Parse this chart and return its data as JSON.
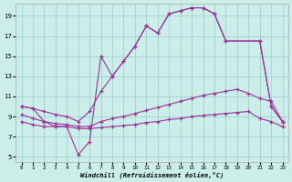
{
  "bg_color": "#cceee8",
  "line_color": "#993399",
  "grid_color": "#99cccc",
  "xlim": [
    -0.5,
    23.5
  ],
  "ylim": [
    4.5,
    20.2
  ],
  "xtick_labels": [
    "0",
    "1",
    "2",
    "3",
    "4",
    "5",
    "6",
    "7",
    "8",
    "9",
    "10",
    "11",
    "12",
    "13",
    "14",
    "15",
    "16",
    "17",
    "18",
    "19",
    "20",
    "21",
    "22",
    "23"
  ],
  "ytick_values": [
    5,
    7,
    9,
    11,
    13,
    15,
    17,
    19
  ],
  "xlabel": "Windchill (Refroidissement éolien,°C)",
  "lines": [
    {
      "x": [
        0,
        1,
        2,
        3,
        4,
        5,
        6,
        7,
        8,
        9,
        10,
        11,
        12,
        13,
        14,
        15,
        16,
        17,
        18,
        21,
        22,
        23
      ],
      "y": [
        10.0,
        9.8,
        9.5,
        9.2,
        9.0,
        8.5,
        9.5,
        11.5,
        13.0,
        14.5,
        16.0,
        18.0,
        17.3,
        19.2,
        19.5,
        19.8,
        19.8,
        19.2,
        16.5,
        16.5,
        10.0,
        8.5
      ]
    },
    {
      "x": [
        0,
        1,
        2,
        3,
        4,
        5,
        6,
        7,
        8,
        9,
        10,
        11,
        12,
        13,
        14,
        15,
        16,
        17,
        18,
        21,
        22,
        23
      ],
      "y": [
        10.0,
        9.8,
        8.5,
        8.0,
        8.0,
        5.2,
        6.5,
        15.0,
        13.0,
        14.5,
        16.0,
        18.0,
        17.3,
        19.2,
        19.5,
        19.8,
        19.8,
        19.2,
        16.5,
        16.5,
        10.0,
        8.5
      ]
    },
    {
      "x": [
        0,
        1,
        2,
        3,
        4,
        5,
        6,
        7,
        8,
        9,
        10,
        11,
        12,
        13,
        14,
        15,
        16,
        17,
        18,
        19,
        20,
        21,
        22,
        23
      ],
      "y": [
        9.2,
        8.8,
        8.5,
        8.3,
        8.2,
        8.0,
        8.0,
        8.5,
        8.8,
        9.0,
        9.3,
        9.6,
        9.9,
        10.2,
        10.5,
        10.8,
        11.1,
        11.3,
        11.5,
        11.7,
        11.3,
        10.8,
        10.5,
        8.5
      ]
    },
    {
      "x": [
        0,
        1,
        2,
        3,
        4,
        5,
        6,
        7,
        8,
        9,
        10,
        11,
        12,
        13,
        14,
        15,
        16,
        17,
        18,
        19,
        20,
        21,
        22,
        23
      ],
      "y": [
        8.5,
        8.2,
        8.0,
        8.0,
        8.0,
        7.8,
        7.8,
        7.9,
        8.0,
        8.1,
        8.2,
        8.4,
        8.5,
        8.7,
        8.8,
        9.0,
        9.1,
        9.2,
        9.3,
        9.4,
        9.5,
        8.8,
        8.5,
        8.0
      ]
    }
  ]
}
